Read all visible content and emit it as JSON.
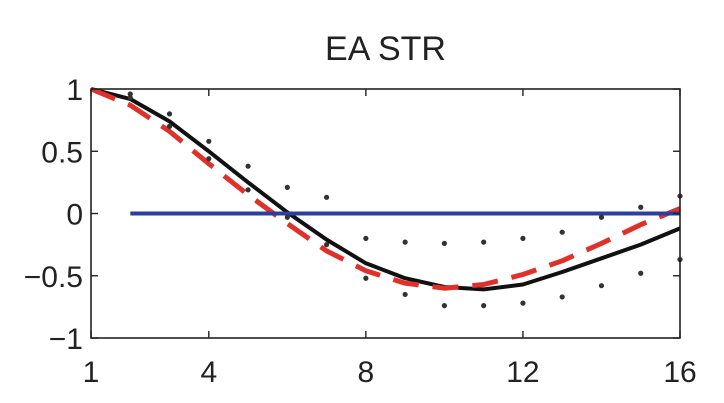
{
  "chart_data": {
    "type": "line",
    "title": "EA STR",
    "xlabel": "",
    "ylabel": "",
    "xlim": [
      1,
      16
    ],
    "ylim": [
      -1,
      1
    ],
    "xticks": [
      1,
      4,
      8,
      12,
      16
    ],
    "xtick_labels": [
      "1",
      "4",
      "8",
      "12",
      "16"
    ],
    "yticks": [
      1,
      0.5,
      0,
      -0.5,
      -1
    ],
    "ytick_labels": [
      "1",
      "0.5",
      "0",
      "−0.5",
      "−1"
    ],
    "grid": false,
    "legend": "none",
    "series": [
      {
        "key": "black-solid",
        "style": "solid",
        "color": "#111111",
        "x": [
          1,
          2,
          3,
          4,
          5,
          6,
          7,
          8,
          9,
          10,
          11,
          12,
          13,
          14,
          15,
          16
        ],
        "y": [
          1.0,
          0.92,
          0.74,
          0.5,
          0.25,
          0.01,
          -0.21,
          -0.4,
          -0.52,
          -0.59,
          -0.61,
          -0.57,
          -0.47,
          -0.36,
          -0.25,
          -0.12
        ]
      },
      {
        "key": "red-dashed",
        "style": "dashed",
        "color": "#e0302a",
        "x": [
          1,
          2,
          3,
          4,
          5,
          6,
          7,
          8,
          9,
          10,
          11,
          12,
          13,
          14,
          15,
          16
        ],
        "y": [
          1.0,
          0.87,
          0.66,
          0.4,
          0.15,
          -0.08,
          -0.3,
          -0.46,
          -0.56,
          -0.6,
          -0.57,
          -0.49,
          -0.38,
          -0.24,
          -0.09,
          0.04
        ]
      },
      {
        "key": "blue-zero",
        "style": "solid",
        "color": "#2a3fa0",
        "x": [
          2,
          16
        ],
        "y": [
          0,
          0
        ]
      },
      {
        "key": "upper-band",
        "style": "dotted",
        "color": "#333333",
        "x": [
          2,
          3,
          4,
          5,
          6,
          7,
          8,
          9,
          10,
          11,
          12,
          13,
          14,
          15,
          16
        ],
        "y": [
          0.96,
          0.8,
          0.58,
          0.38,
          0.21,
          0.13,
          -0.2,
          -0.23,
          -0.24,
          -0.23,
          -0.2,
          -0.15,
          -0.03,
          0.05,
          0.14
        ]
      },
      {
        "key": "lower-band",
        "style": "dotted",
        "color": "#333333",
        "x": [
          2,
          3,
          4,
          5,
          6,
          7,
          8,
          9,
          10,
          11,
          12,
          13,
          14,
          15,
          16
        ],
        "y": [
          0.93,
          0.7,
          0.44,
          0.19,
          -0.03,
          -0.25,
          -0.52,
          -0.65,
          -0.74,
          -0.74,
          -0.72,
          -0.67,
          -0.58,
          -0.48,
          -0.37
        ]
      }
    ]
  }
}
